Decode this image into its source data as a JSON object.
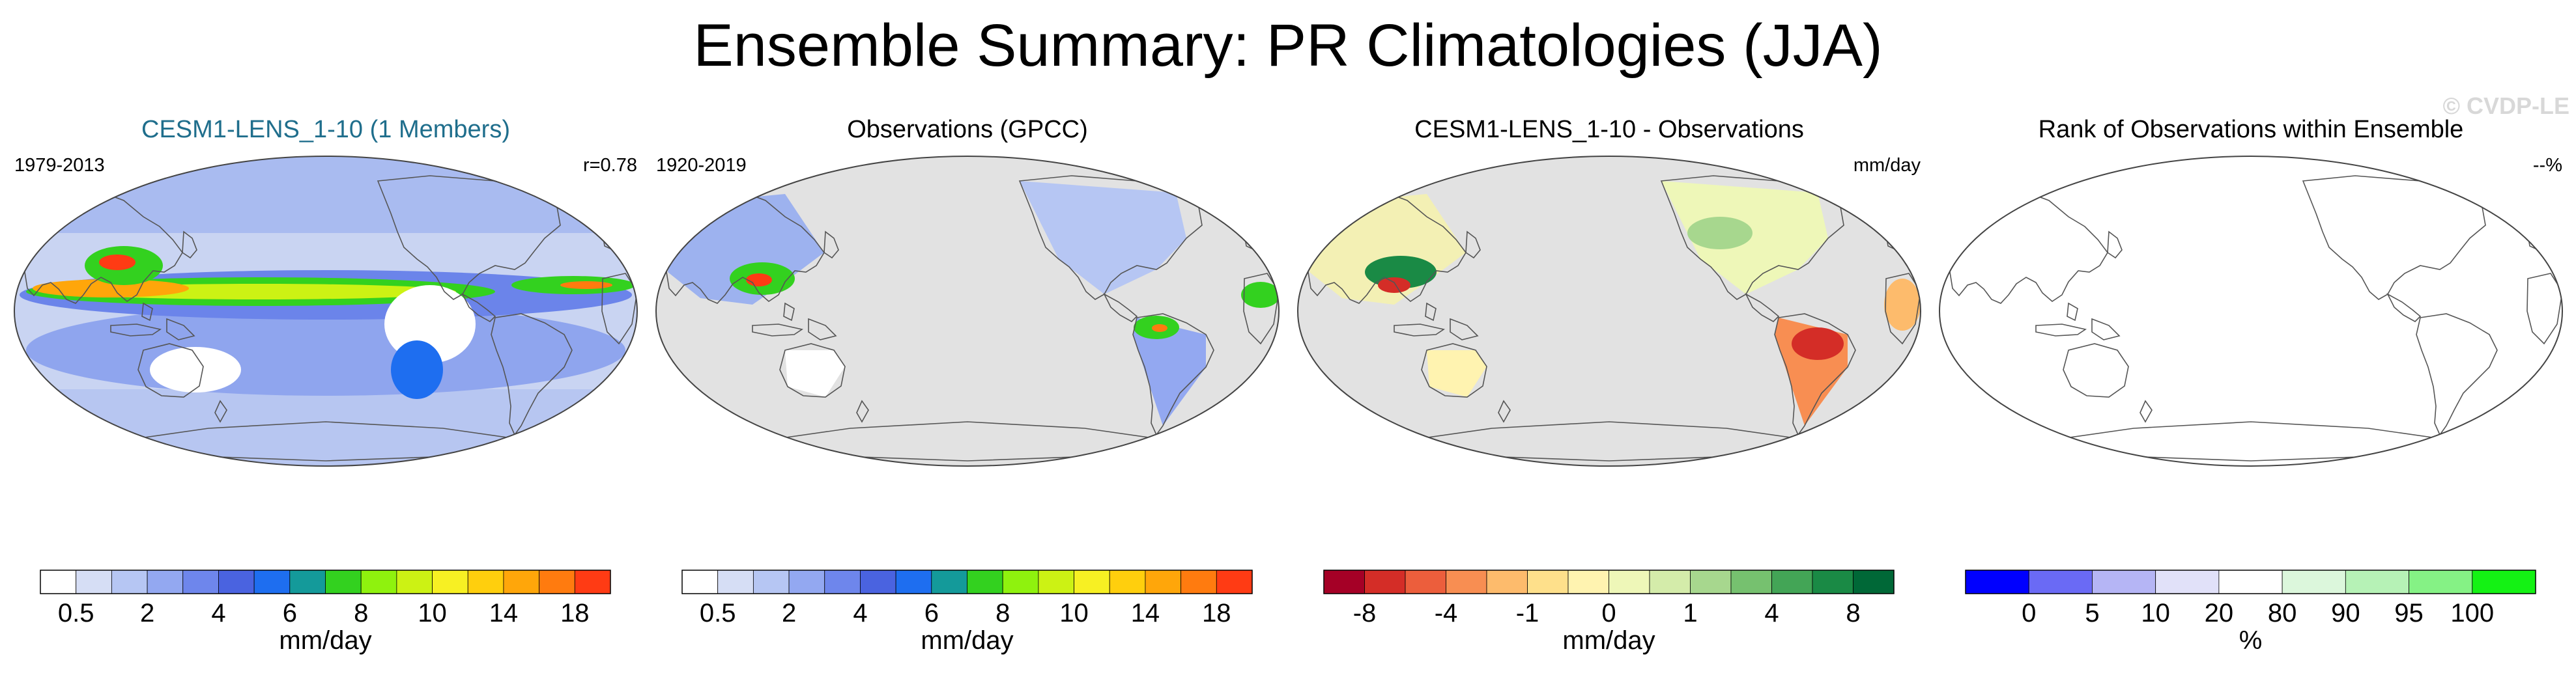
{
  "title": "Ensemble Summary: PR Climatologies (JJA)",
  "watermark": "© CVDP-LE",
  "panels": [
    {
      "title": "CESM1-LENS_1-10 (1 Members)",
      "title_color": "#1f6e8c",
      "left_text": "1979-2013",
      "right_text": "r=0.78",
      "field": "model"
    },
    {
      "title": "Observations (GPCC)",
      "title_color": "#000000",
      "left_text": "1920-2019",
      "right_text": "",
      "field": "obs"
    },
    {
      "title": "CESM1-LENS_1-10 - Observations",
      "title_color": "#000000",
      "left_text": "",
      "right_text": "mm/day",
      "field": "diff"
    },
    {
      "title": "Rank of Observations within Ensemble",
      "title_color": "#000000",
      "left_text": "",
      "right_text": "--%",
      "field": "rank"
    }
  ],
  "colorbars": [
    {
      "label": "mm/day",
      "colors": [
        "#ffffff",
        "#d6def5",
        "#b6c6f3",
        "#93a8f1",
        "#6e86ec",
        "#4a63e0",
        "#1e6ef0",
        "#149a9a",
        "#33d11f",
        "#8ff20e",
        "#ccf214",
        "#f7f023",
        "#ffcf0d",
        "#ffa60a",
        "#ff7b0f",
        "#ff3b14"
      ],
      "ticks": [
        "0.5",
        "2",
        "4",
        "6",
        "8",
        "10",
        "14",
        "18"
      ],
      "tick_slots": [
        1,
        3,
        5,
        7,
        9,
        11,
        13,
        15
      ]
    },
    {
      "label": "mm/day",
      "colors": [
        "#ffffff",
        "#d6def5",
        "#b6c6f3",
        "#93a8f1",
        "#6e86ec",
        "#4a63e0",
        "#1e6ef0",
        "#149a9a",
        "#33d11f",
        "#8ff20e",
        "#ccf214",
        "#f7f023",
        "#ffcf0d",
        "#ffa60a",
        "#ff7b0f",
        "#ff3b14"
      ],
      "ticks": [
        "0.5",
        "2",
        "4",
        "6",
        "8",
        "10",
        "14",
        "18"
      ],
      "tick_slots": [
        1,
        3,
        5,
        7,
        9,
        11,
        13,
        15
      ]
    },
    {
      "label": "mm/day",
      "colors": [
        "#a50026",
        "#d42d27",
        "#ec5e3c",
        "#f88e52",
        "#fdbb6c",
        "#fee08b",
        "#fff3b0",
        "#eef7b8",
        "#d4ecaa",
        "#a7d78e",
        "#76c16f",
        "#43a556",
        "#1a8a45",
        "#006837"
      ],
      "ticks": [
        "-8",
        "-4",
        "-1",
        "0",
        "1",
        "4",
        "8"
      ],
      "tick_slots": [
        1,
        3,
        5,
        7,
        9,
        11,
        13
      ]
    },
    {
      "label": "%",
      "colors": [
        "#0000ff",
        "#6a6af5",
        "#b5b5f5",
        "#e1e1f9",
        "#ffffff",
        "#dcf7dc",
        "#b6f2b6",
        "#85f285",
        "#14f214"
      ],
      "ticks": [
        "0",
        "5",
        "10",
        "20",
        "80",
        "90",
        "95",
        "100"
      ],
      "tick_slots": [
        1,
        2,
        3,
        4,
        5,
        6,
        7,
        8
      ]
    }
  ],
  "chart_data": {
    "type": "map-panels",
    "title": "Ensemble Summary: PR Climatologies (JJA)",
    "variable": "PR",
    "season": "JJA",
    "units": "mm/day",
    "panels": [
      {
        "name": "CESM1-LENS_1-10 (1 Members)",
        "period": "1979-2013",
        "pattern_correlation": 0.78
      },
      {
        "name": "Observations (GPCC)",
        "period": "1920-2019"
      },
      {
        "name": "CESM1-LENS_1-10 - Observations",
        "units": "mm/day"
      },
      {
        "name": "Rank of Observations within Ensemble",
        "value": "--%"
      }
    ],
    "climatology_levels": [
      0.5,
      1,
      2,
      3,
      4,
      5,
      6,
      7,
      8,
      9,
      10,
      12,
      14,
      16,
      18
    ],
    "difference_levels": [
      -8,
      -6,
      -4,
      -2,
      -1,
      -0.5,
      0,
      0.5,
      1,
      2,
      4,
      6,
      8
    ],
    "rank_levels": [
      0,
      5,
      10,
      20,
      80,
      90,
      95,
      100
    ]
  }
}
